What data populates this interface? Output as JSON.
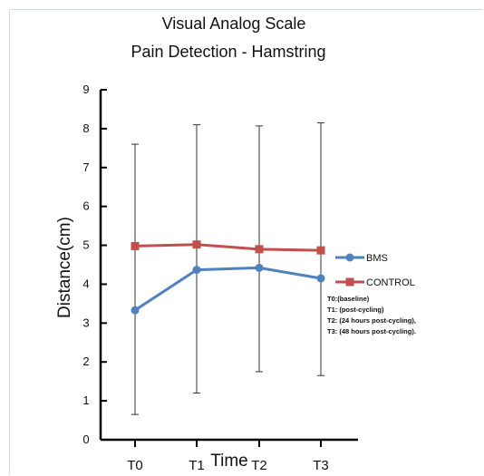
{
  "chart_data": {
    "type": "line",
    "title": "Visual Analog Scale",
    "subtitle": "Pain Detection - Hamstring",
    "xlabel": "Time",
    "ylabel": "Distance(cm)",
    "categories": [
      "T0",
      "T1",
      "T2",
      "T3"
    ],
    "ylim": [
      0,
      9
    ],
    "yticks": [
      "0",
      "1",
      "2",
      "3",
      "4",
      "5",
      "6",
      "7",
      "8",
      "9"
    ],
    "grid": false,
    "legend_position": "right",
    "series": [
      {
        "name": "BMS",
        "color": "#4f81bd",
        "marker": "circle",
        "values": [
          3.33,
          4.37,
          4.42,
          4.15
        ],
        "error_upper": [
          7.6,
          8.1,
          8.07,
          8.15
        ],
        "error_lower": [
          0.65,
          1.2,
          1.75,
          1.65
        ]
      },
      {
        "name": "CONTROL",
        "color": "#c0504d",
        "marker": "square",
        "values": [
          4.98,
          5.02,
          4.9,
          4.87
        ]
      }
    ],
    "notes": [
      "T0:(baseline)",
      "T1: (post-cycling)",
      "T2: (24 hours post-cycling),",
      "T3: (48 hours post-cycling)."
    ]
  }
}
